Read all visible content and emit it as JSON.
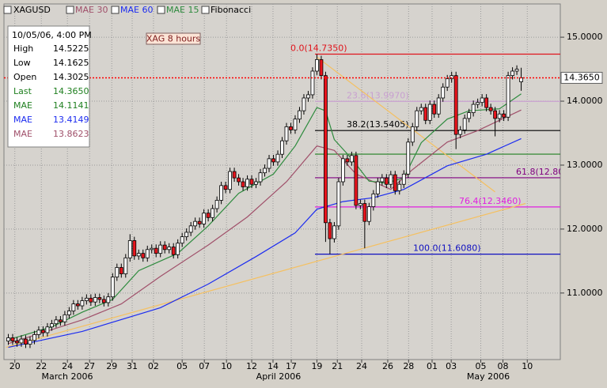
{
  "chart_data": {
    "type": "candlestick",
    "name": "XAGUSD",
    "annotation": "XAG 8 hours",
    "overlay_label": "Fibonacci",
    "up_color": "#ffffff",
    "down_color": "#e8141c",
    "open": [
      10.25,
      10.3,
      10.25,
      10.22,
      10.28,
      10.2,
      10.26,
      10.35,
      10.42,
      10.38,
      10.47,
      10.52,
      10.58,
      10.55,
      10.66,
      10.72,
      10.83,
      10.8,
      10.88,
      10.92,
      10.86,
      10.93,
      10.9,
      10.85,
      10.94,
      11.25,
      11.4,
      11.3,
      11.55,
      11.82,
      11.58,
      11.62,
      11.55,
      11.68,
      11.7,
      11.62,
      11.75,
      11.68,
      11.72,
      11.6,
      11.78,
      11.88,
      11.95,
      12.05,
      12.12,
      12.08,
      12.25,
      12.18,
      12.32,
      12.45,
      12.68,
      12.62,
      12.9,
      12.8,
      12.74,
      12.66,
      12.78,
      12.7,
      12.74,
      12.88,
      12.95,
      13.1,
      13.05,
      13.17,
      13.38,
      13.6,
      13.55,
      13.72,
      13.85,
      14.05,
      14.1,
      14.47,
      14.65,
      14.4,
      12.1,
      11.85,
      12.05,
      12.74,
      13.1,
      13.05,
      13.15,
      12.37,
      12.4,
      12.12,
      12.35,
      12.55,
      12.74,
      12.8,
      12.7,
      12.85,
      12.6,
      12.7,
      12.86,
      13.36,
      13.6,
      13.85,
      13.9,
      13.7,
      13.95,
      13.8,
      14.05,
      14.22,
      14.35,
      14.4,
      13.48,
      13.55,
      13.73,
      13.82,
      13.95,
      13.98,
      14.05,
      13.9,
      13.85,
      13.73,
      13.8,
      13.75,
      14.4,
      14.47,
      14.3025
    ],
    "high": [
      10.36,
      10.36,
      10.31,
      10.34,
      10.34,
      10.32,
      10.41,
      10.48,
      10.48,
      10.53,
      10.58,
      10.64,
      10.64,
      10.72,
      10.78,
      10.89,
      10.89,
      10.94,
      10.98,
      10.98,
      10.99,
      10.99,
      10.96,
      11.0,
      11.31,
      11.46,
      11.46,
      11.61,
      11.92,
      11.88,
      11.68,
      11.68,
      11.74,
      11.76,
      11.76,
      11.81,
      11.81,
      11.78,
      11.78,
      11.84,
      11.94,
      12.01,
      12.11,
      12.18,
      12.18,
      12.31,
      12.31,
      12.38,
      12.51,
      12.74,
      12.74,
      12.96,
      12.96,
      12.86,
      12.8,
      12.84,
      12.84,
      12.8,
      12.94,
      13.01,
      13.16,
      13.16,
      13.23,
      13.44,
      13.66,
      13.66,
      13.78,
      13.91,
      14.11,
      14.16,
      14.53,
      14.735,
      14.71,
      14.46,
      12.16,
      12.11,
      12.8,
      13.16,
      13.16,
      13.21,
      13.21,
      12.46,
      12.46,
      12.41,
      12.61,
      12.8,
      12.86,
      12.86,
      12.91,
      12.91,
      12.76,
      12.92,
      13.42,
      13.66,
      13.91,
      13.96,
      13.96,
      14.01,
      14.01,
      14.11,
      14.28,
      14.41,
      14.46,
      14.46,
      13.61,
      13.79,
      13.88,
      14.01,
      14.04,
      14.11,
      14.11,
      13.96,
      13.91,
      13.86,
      13.86,
      14.46,
      14.53,
      14.56,
      14.5225
    ],
    "low": [
      10.19,
      10.19,
      10.16,
      10.16,
      10.14,
      10.14,
      10.2,
      10.29,
      10.32,
      10.32,
      10.41,
      10.46,
      10.49,
      10.49,
      10.6,
      10.66,
      10.74,
      10.74,
      10.82,
      10.8,
      10.8,
      10.84,
      10.79,
      10.79,
      10.88,
      11.19,
      11.24,
      11.24,
      11.49,
      11.52,
      11.52,
      11.49,
      11.49,
      11.62,
      11.56,
      11.56,
      11.62,
      11.62,
      11.54,
      11.54,
      11.72,
      11.82,
      11.89,
      11.99,
      12.02,
      12.02,
      12.12,
      12.12,
      12.26,
      12.39,
      12.56,
      12.56,
      12.74,
      12.68,
      12.6,
      12.6,
      12.64,
      12.64,
      12.68,
      12.82,
      12.89,
      12.99,
      12.99,
      13.11,
      13.32,
      13.49,
      13.49,
      13.66,
      13.79,
      13.99,
      14.04,
      14.41,
      14.34,
      11.8,
      11.608,
      11.79,
      11.99,
      12.68,
      12.99,
      12.99,
      12.31,
      12.31,
      11.7,
      12.06,
      12.29,
      12.49,
      12.68,
      12.64,
      12.64,
      12.54,
      12.54,
      12.64,
      12.8,
      13.3,
      13.54,
      13.79,
      13.64,
      13.64,
      13.74,
      13.74,
      13.99,
      14.16,
      14.29,
      13.25,
      13.42,
      13.49,
      13.67,
      13.76,
      13.89,
      13.92,
      13.84,
      13.79,
      13.45,
      13.67,
      13.69,
      13.69,
      14.34,
      14.41,
      14.1625
    ],
    "close": [
      10.3,
      10.25,
      10.22,
      10.28,
      10.2,
      10.26,
      10.35,
      10.42,
      10.38,
      10.47,
      10.52,
      10.58,
      10.55,
      10.66,
      10.72,
      10.83,
      10.8,
      10.88,
      10.92,
      10.86,
      10.93,
      10.9,
      10.85,
      10.94,
      11.25,
      11.4,
      11.3,
      11.55,
      11.82,
      11.58,
      11.62,
      11.55,
      11.68,
      11.7,
      11.62,
      11.75,
      11.68,
      11.72,
      11.6,
      11.78,
      11.88,
      11.95,
      12.05,
      12.12,
      12.08,
      12.25,
      12.18,
      12.32,
      12.45,
      12.68,
      12.62,
      12.9,
      12.8,
      12.74,
      12.66,
      12.78,
      12.7,
      12.74,
      12.88,
      12.95,
      13.1,
      13.05,
      13.17,
      13.38,
      13.6,
      13.55,
      13.72,
      13.85,
      14.05,
      14.1,
      14.47,
      14.65,
      14.4,
      12.1,
      11.85,
      12.05,
      12.74,
      13.1,
      13.05,
      13.15,
      12.37,
      12.4,
      12.12,
      12.35,
      12.55,
      12.74,
      12.8,
      12.7,
      12.85,
      12.6,
      12.7,
      12.86,
      13.36,
      13.6,
      13.85,
      13.9,
      13.7,
      13.95,
      13.8,
      14.05,
      14.22,
      14.35,
      14.4,
      13.48,
      13.55,
      13.73,
      13.82,
      13.95,
      13.98,
      14.05,
      13.9,
      13.85,
      13.73,
      13.8,
      13.75,
      14.4,
      14.47,
      14.5,
      14.365
    ],
    "series": [
      {
        "name": "MAE 30",
        "color": "#a0506a",
        "x": [
          0,
          17,
          26,
          35,
          46,
          55,
          64,
          71,
          75,
          80,
          88,
          93,
          101,
          108,
          118
        ],
        "values": [
          10.21,
          10.58,
          10.83,
          11.26,
          11.75,
          12.19,
          12.74,
          13.3,
          13.23,
          12.86,
          12.62,
          12.93,
          13.36,
          13.54,
          13.8623
        ]
      },
      {
        "name": "MAE 60",
        "color": "#1c2cf0",
        "x": [
          0,
          17,
          35,
          46,
          57,
          66,
          71,
          77,
          84,
          91,
          101,
          110,
          118
        ],
        "values": [
          10.15,
          10.4,
          10.77,
          11.14,
          11.57,
          11.94,
          12.31,
          12.43,
          12.49,
          12.62,
          12.99,
          13.17,
          13.4149
        ]
      },
      {
        "name": "MAE 15",
        "color": "#2e8b3e",
        "x": [
          0,
          10,
          17,
          24,
          30,
          39,
          46,
          53,
          61,
          66,
          71,
          73,
          75,
          79,
          83,
          87,
          91,
          95,
          101,
          106,
          113,
          118
        ],
        "values": [
          10.27,
          10.47,
          10.7,
          10.9,
          11.35,
          11.62,
          12.05,
          12.56,
          12.86,
          13.3,
          13.9,
          13.85,
          13.4,
          13.1,
          12.75,
          12.72,
          12.8,
          13.35,
          13.72,
          13.85,
          13.88,
          14.1141
        ]
      }
    ],
    "fibonacci": [
      {
        "label": "0.0(14.7350)",
        "value": 14.735,
        "color": "#e0141c"
      },
      {
        "label": "23.6(13.9970)",
        "value": 13.997,
        "color": "#c8a0d0"
      },
      {
        "label": "38.2(13.5405)",
        "value": 13.5405,
        "color": "#000000"
      },
      {
        "value": 13.1715,
        "color": "#208020"
      },
      {
        "label": "61.8(12.80",
        "value": 12.8023,
        "color": "#800080"
      },
      {
        "label": "76.4(12.3460)",
        "value": 12.346,
        "color": "#e020e0"
      },
      {
        "label": "100.0(11.6080)",
        "value": 11.608,
        "color": "#1010c0"
      }
    ],
    "trendlines": [
      {
        "color": "#f5c060",
        "x": [
          -0.5,
          119
        ],
        "values": [
          10.15,
          12.4
        ]
      },
      {
        "color": "#f5c060",
        "x": [
          71,
          112
        ],
        "values": [
          14.69,
          12.58
        ]
      }
    ],
    "last": {
      "value": 14.365,
      "label": "14.3650",
      "color": "#ff0000"
    },
    "info": {
      "title": "10/05/06, 4:00 PM",
      "rows": [
        {
          "label": "High",
          "value": "14.5225",
          "color": "#000000"
        },
        {
          "label": "Low",
          "value": "14.1625",
          "color": "#000000"
        },
        {
          "label": "Open",
          "value": "14.3025",
          "color": "#000000"
        },
        {
          "label": "Last",
          "value": "14.3650",
          "color": "#208020"
        },
        {
          "label": "MAE",
          "value": "14.1141",
          "color": "#208020"
        },
        {
          "label": "MAE",
          "value": "13.4149",
          "color": "#1c2cf0"
        },
        {
          "label": "MAE",
          "value": "13.8623",
          "color": "#a0506a"
        }
      ]
    },
    "xlim": [
      -1,
      127
    ],
    "ylim": [
      9.96,
      15.52
    ],
    "xticks": [
      {
        "value": 1.5,
        "label": "20"
      },
      {
        "value": 7.6,
        "label": "22"
      },
      {
        "value": 13.6,
        "label": "24"
      },
      {
        "value": 18.7,
        "label": "27"
      },
      {
        "value": 23.8,
        "label": "29"
      },
      {
        "value": 28.5,
        "label": "31"
      },
      {
        "value": 33.4,
        "label": "02"
      },
      {
        "value": 40.0,
        "label": "05"
      },
      {
        "value": 45.1,
        "label": "07"
      },
      {
        "value": 50.2,
        "label": "10"
      },
      {
        "value": 56.0,
        "label": "12"
      },
      {
        "value": 60.9,
        "label": "14"
      },
      {
        "value": 65.1,
        "label": "17"
      },
      {
        "value": 71.0,
        "label": "19"
      },
      {
        "value": 75.7,
        "label": "21"
      },
      {
        "value": 81.3,
        "label": "24"
      },
      {
        "value": 87.3,
        "label": "26"
      },
      {
        "value": 92.1,
        "label": "28"
      },
      {
        "value": 97.5,
        "label": "01"
      },
      {
        "value": 101.9,
        "label": "03"
      },
      {
        "value": 108.7,
        "label": "05"
      },
      {
        "value": 113.8,
        "label": "08"
      },
      {
        "value": 119.4,
        "label": "10"
      }
    ],
    "yticks": [
      {
        "value": 11,
        "label": "11.0000"
      },
      {
        "value": 12,
        "label": "12.0000"
      },
      {
        "value": 13,
        "label": "13.0000"
      },
      {
        "value": 14,
        "label": "14.0000"
      },
      {
        "value": 15,
        "label": "15.0000"
      }
    ],
    "months": [
      "March 2006",
      "April 2006",
      "May 2006"
    ],
    "grid": true
  }
}
